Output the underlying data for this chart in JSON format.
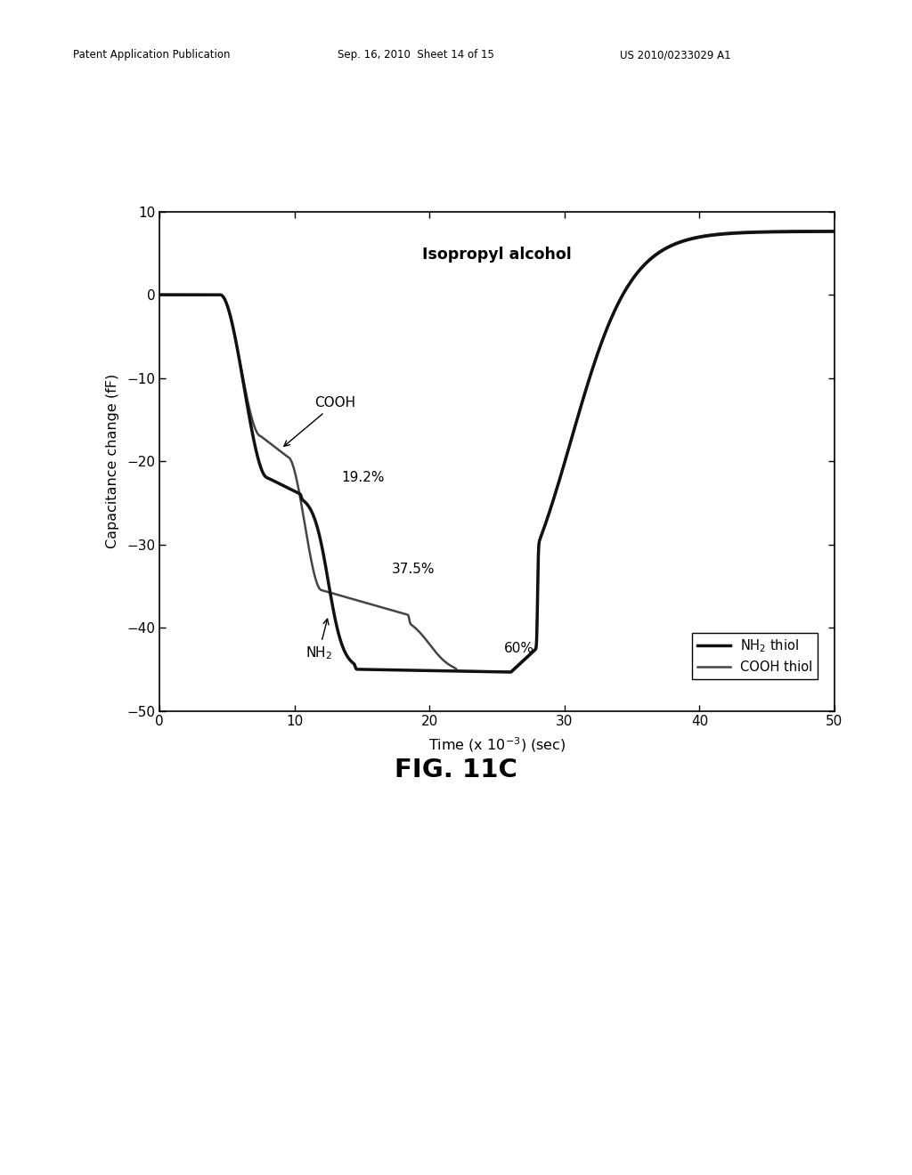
{
  "title": "Isopropyl alcohol",
  "xlabel": "Time (x 10$^{-3}$) (sec)",
  "ylabel": "Capacitance change (fF)",
  "xlim": [
    0,
    50
  ],
  "ylim": [
    -50,
    10
  ],
  "xticks": [
    0,
    10,
    20,
    30,
    40,
    50
  ],
  "yticks": [
    -50,
    -40,
    -30,
    -20,
    -10,
    0,
    10
  ],
  "fig_caption": "FIG. 11C",
  "header_left": "Patent Application Publication",
  "header_mid": "Sep. 16, 2010  Sheet 14 of 15",
  "header_right": "US 2010/0233029 A1",
  "legend_nh2": "NH$_2$ thiol",
  "legend_cooh": "COOH thiol",
  "ann_cooh": "COOH",
  "ann_192": "19.2%",
  "ann_375": "37.5%",
  "ann_nh2": "NH$_2$",
  "ann_60": "60%",
  "bg_color": "#ffffff",
  "line_color_nh2": "#111111",
  "line_color_cooh": "#444444",
  "lw_nh2": 2.5,
  "lw_cooh": 1.8
}
